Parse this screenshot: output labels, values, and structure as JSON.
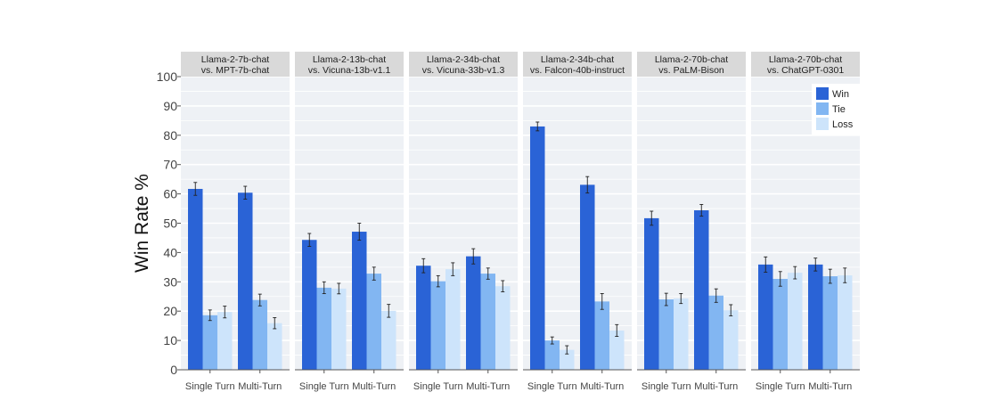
{
  "chart_data": {
    "type": "bar",
    "ylabel": "Win Rate %",
    "ylim": [
      0,
      100
    ],
    "yticks": [
      0,
      10,
      20,
      30,
      40,
      50,
      60,
      70,
      80,
      90,
      100
    ],
    "grid": true,
    "legend_position": "top-right",
    "categories": [
      "Single Turn",
      "Multi-Turn"
    ],
    "legend": [
      {
        "name": "Win",
        "color": "#2a63d6"
      },
      {
        "name": "Tie",
        "color": "#82b6f2"
      },
      {
        "name": "Loss",
        "color": "#cde4fb"
      }
    ],
    "panels": [
      {
        "title_line1": "Llama-2-7b-chat",
        "title_line2": "vs. MPT-7b-chat",
        "series": [
          {
            "name": "Win",
            "values": [
              61.7,
              60.4
            ],
            "errors": [
              2.2,
              2.2
            ]
          },
          {
            "name": "Tie",
            "values": [
              18.6,
              23.8
            ],
            "errors": [
              1.8,
              2.0
            ]
          },
          {
            "name": "Loss",
            "values": [
              19.7,
              15.9
            ],
            "errors": [
              2.0,
              1.9
            ]
          }
        ]
      },
      {
        "title_line1": "Llama-2-13b-chat",
        "title_line2": "vs. Vicuna-13b-v1.1",
        "series": [
          {
            "name": "Win",
            "values": [
              44.3,
              47.1
            ],
            "errors": [
              2.2,
              2.9
            ]
          },
          {
            "name": "Tie",
            "values": [
              28.0,
              32.8
            ],
            "errors": [
              2.0,
              2.2
            ]
          },
          {
            "name": "Loss",
            "values": [
              27.7,
              20.1
            ],
            "errors": [
              1.8,
              2.2
            ]
          }
        ]
      },
      {
        "title_line1": "Llama-2-34b-chat",
        "title_line2": "vs. Vicuna-33b-v1.3",
        "series": [
          {
            "name": "Win",
            "values": [
              35.5,
              38.7
            ],
            "errors": [
              2.4,
              2.6
            ]
          },
          {
            "name": "Tie",
            "values": [
              30.2,
              32.8
            ],
            "errors": [
              1.9,
              1.9
            ]
          },
          {
            "name": "Loss",
            "values": [
              34.3,
              28.5
            ],
            "errors": [
              2.2,
              1.9
            ]
          }
        ]
      },
      {
        "title_line1": "Llama-2-34b-chat",
        "title_line2": "vs. Falcon-40b-instruct",
        "series": [
          {
            "name": "Win",
            "values": [
              83.0,
              63.1
            ],
            "errors": [
              1.5,
              2.8
            ]
          },
          {
            "name": "Tie",
            "values": [
              10.0,
              23.3
            ],
            "errors": [
              1.2,
              2.7
            ]
          },
          {
            "name": "Loss",
            "values": [
              6.8,
              13.4
            ],
            "errors": [
              1.4,
              2.0
            ]
          }
        ]
      },
      {
        "title_line1": "Llama-2-70b-chat",
        "title_line2": "vs. PaLM-Bison",
        "series": [
          {
            "name": "Win",
            "values": [
              51.7,
              54.4
            ],
            "errors": [
              2.4,
              2.0
            ]
          },
          {
            "name": "Tie",
            "values": [
              24.0,
              25.3
            ],
            "errors": [
              2.1,
              2.3
            ]
          },
          {
            "name": "Loss",
            "values": [
              24.3,
              20.3
            ],
            "errors": [
              1.7,
              1.9
            ]
          }
        ]
      },
      {
        "title_line1": "Llama-2-70b-chat",
        "title_line2": "vs. ChatGPT-0301",
        "series": [
          {
            "name": "Win",
            "values": [
              35.9,
              35.9
            ],
            "errors": [
              2.6,
              2.2
            ]
          },
          {
            "name": "Tie",
            "values": [
              31.0,
              31.9
            ],
            "errors": [
              2.5,
              2.4
            ]
          },
          {
            "name": "Loss",
            "values": [
              33.1,
              32.2
            ],
            "errors": [
              2.1,
              2.5
            ]
          }
        ]
      }
    ]
  }
}
